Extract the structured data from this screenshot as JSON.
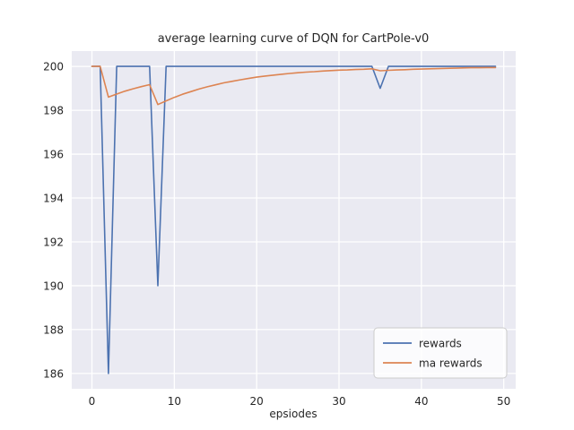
{
  "figure": {
    "bg": "#ffffff"
  },
  "axes": {
    "bg": "#eaeaf2",
    "grid_color": "#ffffff",
    "text_color": "#262626"
  },
  "legend": {
    "fill": "#ffffff",
    "border": "#cccccc",
    "position": "lower right"
  },
  "chart_data": {
    "type": "line",
    "title": "average learning curve of DQN for CartPole-v0",
    "xlabel": "epsiodes",
    "ylabel": "",
    "grid": true,
    "xlim": [
      -2.45,
      51.45
    ],
    "ylim": [
      185.3,
      200.7
    ],
    "xticks": [
      0,
      10,
      20,
      30,
      40,
      50
    ],
    "yticks": [
      186,
      188,
      190,
      192,
      194,
      196,
      198,
      200
    ],
    "legend_position": "lower right",
    "x": [
      0,
      1,
      2,
      3,
      4,
      5,
      6,
      7,
      8,
      9,
      10,
      11,
      12,
      13,
      14,
      15,
      16,
      17,
      18,
      19,
      20,
      21,
      22,
      23,
      24,
      25,
      26,
      27,
      28,
      29,
      30,
      31,
      32,
      33,
      34,
      35,
      36,
      37,
      38,
      39,
      40,
      41,
      42,
      43,
      44,
      45,
      46,
      47,
      48,
      49
    ],
    "series": [
      {
        "name": "rewards",
        "color": "#4c72b0",
        "values": [
          200,
          200,
          186,
          200,
          200,
          200,
          200,
          200,
          190,
          200,
          200,
          200,
          200,
          200,
          200,
          200,
          200,
          200,
          200,
          200,
          200,
          200,
          200,
          200,
          200,
          200,
          200,
          200,
          200,
          200,
          200,
          200,
          200,
          200,
          200,
          199,
          200,
          200,
          200,
          200,
          200,
          200,
          200,
          200,
          200,
          200,
          200,
          200,
          200,
          200
        ]
      },
      {
        "name": "ma rewards",
        "color": "#dd8452",
        "values": [
          200,
          200,
          198.6,
          198.74,
          198.87,
          198.98,
          199.08,
          199.17,
          198.26,
          198.43,
          198.59,
          198.73,
          198.85,
          198.97,
          199.07,
          199.16,
          199.25,
          199.32,
          199.39,
          199.45,
          199.51,
          199.56,
          199.6,
          199.64,
          199.68,
          199.71,
          199.74,
          199.76,
          199.79,
          199.81,
          199.83,
          199.84,
          199.86,
          199.87,
          199.89,
          199.8,
          199.82,
          199.84,
          199.85,
          199.87,
          199.88,
          199.89,
          199.9,
          199.91,
          199.92,
          199.93,
          199.94,
          199.94,
          199.95,
          199.95
        ]
      }
    ]
  }
}
